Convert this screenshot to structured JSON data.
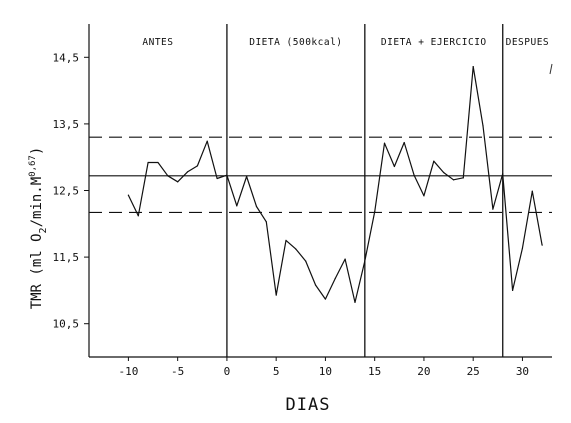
{
  "chart_data": {
    "type": "line",
    "xlabel": "DIAS",
    "ylabel": "TMR (ml O2/min.M0,67)",
    "ylabel_parts": {
      "prefix": "TMR (ml O",
      "sub": "2",
      "middle": "/min.M",
      "sup": "0,67",
      "suffix": ")"
    },
    "xlim": [
      -14,
      33
    ],
    "ylim": [
      10.0,
      15.0
    ],
    "xticks": [
      -10,
      -5,
      0,
      5,
      10,
      15,
      20,
      25,
      30
    ],
    "xtick_labels": [
      "-10",
      "-5",
      "0",
      "5",
      "10",
      "15",
      "20",
      "25",
      "30"
    ],
    "yticks": [
      10.5,
      11.5,
      12.5,
      13.5,
      14.5
    ],
    "ytick_labels": [
      "10,5",
      "11,5",
      "12,5",
      "13,5",
      "14,5"
    ],
    "grid": false,
    "phase_boundaries": [
      0,
      14,
      28
    ],
    "phases": [
      {
        "label": "ANTES",
        "x_center": -7
      },
      {
        "label": "DIETA (500kcal)",
        "x_center": 7
      },
      {
        "label": "DIETA + EJERCICIO",
        "x_center": 21
      },
      {
        "label": "DESPUES",
        "x_center": 30.5
      }
    ],
    "reference_lines": {
      "mean": 12.72,
      "upper": 13.3,
      "lower": 12.17
    },
    "series": [
      {
        "points": [
          [
            -10,
            12.43
          ],
          [
            -9,
            12.12
          ],
          [
            -8,
            12.92
          ],
          [
            -7,
            12.92
          ],
          [
            -6,
            12.72
          ],
          [
            -5,
            12.63
          ],
          [
            -4,
            12.78
          ],
          [
            -3,
            12.87
          ],
          [
            -2,
            13.24
          ],
          [
            -1,
            12.68
          ],
          [
            0,
            12.73
          ],
          [
            1,
            12.27
          ],
          [
            2,
            12.71
          ],
          [
            3,
            12.26
          ],
          [
            4,
            12.03
          ],
          [
            5,
            10.93
          ],
          [
            6,
            11.75
          ],
          [
            7,
            11.62
          ],
          [
            8,
            11.44
          ],
          [
            9,
            11.08
          ],
          [
            10,
            10.87
          ],
          [
            11,
            11.18
          ],
          [
            12,
            11.47
          ],
          [
            13,
            10.82
          ],
          [
            14,
            11.44
          ],
          [
            15,
            12.18
          ],
          [
            16,
            13.21
          ],
          [
            17,
            12.86
          ],
          [
            18,
            13.22
          ],
          [
            19,
            12.73
          ],
          [
            20,
            12.42
          ],
          [
            21,
            12.94
          ],
          [
            22,
            12.77
          ],
          [
            23,
            12.66
          ],
          [
            24,
            12.69
          ],
          [
            25,
            14.36
          ],
          [
            26,
            13.47
          ],
          [
            27,
            12.22
          ],
          [
            28,
            12.75
          ],
          [
            29,
            11.0
          ],
          [
            30,
            11.63
          ],
          [
            31,
            12.49
          ],
          [
            32,
            11.68
          ]
        ]
      }
    ]
  }
}
